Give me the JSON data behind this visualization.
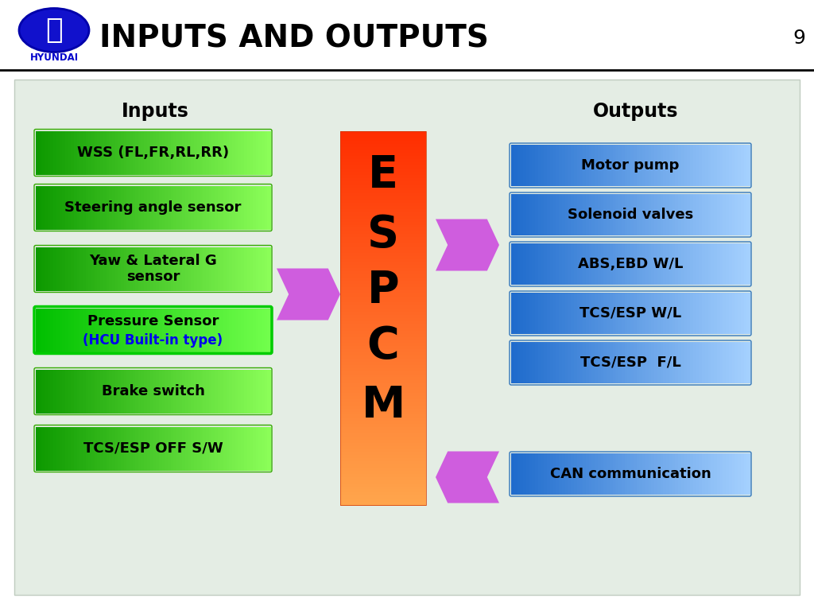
{
  "title": "INPUTS AND OUTPUTS",
  "page_num": "9",
  "bg_color": "#e8f0e8",
  "header_bg": "#ffffff",
  "input_labels": [
    "WSS (FL,FR,RL,RR)",
    "Steering angle sensor",
    "Yaw & Lateral G\nsensor",
    "Pressure Sensor\n(HCU Built-in type)",
    "Brake switch",
    "TCS/ESP OFF S/W"
  ],
  "output_labels": [
    "Motor pump",
    "Solenoid valves",
    "ABS,EBD W/L",
    "TCS/ESP W/L",
    "TCS/ESP  F/L",
    "CAN communication"
  ],
  "espcm_letters": [
    "E",
    "S",
    "P",
    "C",
    "M"
  ],
  "inputs_label": "Inputs",
  "outputs_label": "Outputs",
  "hyundai_color": "#0000cc",
  "arrow_color": "#dd44cc",
  "content_bg": "#e4ede4"
}
